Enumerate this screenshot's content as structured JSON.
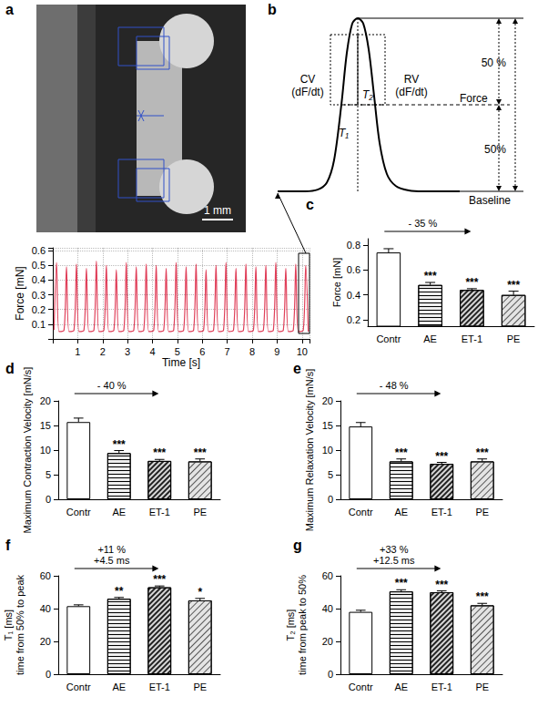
{
  "chart_data": [
    {
      "type": "image",
      "panel_label": "a",
      "scale_bar": "1 mm"
    },
    {
      "type": "line",
      "panel_label": "b",
      "x": [
        0,
        0.15,
        0.22,
        0.27,
        0.31,
        0.35,
        0.38,
        0.41,
        0.44,
        0.47,
        0.5,
        0.53,
        0.56,
        0.6,
        0.65,
        0.72,
        0.8,
        1
      ],
      "values": [
        0,
        0,
        0.01,
        0.05,
        0.18,
        0.5,
        0.8,
        0.97,
        1,
        0.97,
        0.82,
        0.55,
        0.28,
        0.1,
        0.03,
        0.005,
        0,
        0
      ],
      "xlim": [
        0,
        1
      ],
      "ylim": [
        0,
        1
      ],
      "tick_labels": false,
      "color": "#000000",
      "annotations": {
        "upper": "50 %",
        "lower": "50%",
        "level": "Force",
        "baseline": "Baseline",
        "cv": "CV\n(dF/dt)",
        "rv": "RV\n(dF/dt)",
        "t1": "T₁",
        "t2": "T₂"
      }
    },
    {
      "type": "line",
      "xlabel": "Time [s]",
      "ylabel": "Force [mN]",
      "x": [
        0.05,
        0.15,
        0.25,
        0.45,
        0.55,
        0.65,
        0.85,
        0.95,
        1.05,
        1.25,
        1.35,
        1.45,
        1.65,
        1.75,
        1.85,
        2.05,
        2.15,
        2.25,
        2.45,
        2.55,
        2.65,
        2.85,
        2.95,
        3.05,
        3.25,
        3.35,
        3.45,
        3.65,
        3.75,
        3.85,
        4.05,
        4.15,
        4.25,
        4.45,
        4.55,
        4.65,
        4.85,
        4.95,
        5.05,
        5.25,
        5.35,
        5.45,
        5.65,
        5.75,
        5.85,
        6.05,
        6.15,
        6.25,
        6.45,
        6.55,
        6.65,
        6.85,
        6.95,
        7.05,
        7.25,
        7.35,
        7.45,
        7.65,
        7.75,
        7.85,
        8.05,
        8.15,
        8.25,
        8.45,
        8.55,
        8.65,
        8.85,
        8.95,
        9.05,
        9.25,
        9.35,
        9.45,
        9.65,
        9.75,
        9.85,
        10.05,
        10.15,
        10.25
      ],
      "values": [
        0.06,
        0.52,
        0.05,
        0.06,
        0.49,
        0.05,
        0.06,
        0.51,
        0.05,
        0.06,
        0.48,
        0.05,
        0.06,
        0.53,
        0.05,
        0.06,
        0.5,
        0.05,
        0.06,
        0.47,
        0.05,
        0.06,
        0.52,
        0.05,
        0.06,
        0.49,
        0.05,
        0.06,
        0.51,
        0.05,
        0.06,
        0.5,
        0.05,
        0.06,
        0.48,
        0.05,
        0.06,
        0.52,
        0.05,
        0.06,
        0.49,
        0.05,
        0.06,
        0.51,
        0.05,
        0.06,
        0.47,
        0.05,
        0.06,
        0.5,
        0.05,
        0.06,
        0.52,
        0.05,
        0.06,
        0.48,
        0.05,
        0.06,
        0.51,
        0.05,
        0.06,
        0.49,
        0.05,
        0.06,
        0.5,
        0.05,
        0.06,
        0.52,
        0.05,
        0.06,
        0.48,
        0.05,
        0.06,
        0.51,
        0.05,
        0.06,
        0.5,
        0.05
      ],
      "xlim": [
        0,
        10.3
      ],
      "xticks": [
        1,
        2,
        3,
        4,
        5,
        6,
        7,
        8,
        9,
        10
      ],
      "ylim": [
        0,
        0.62
      ],
      "yticks": [
        0.1,
        0.2,
        0.3,
        0.4,
        0.5,
        0.6
      ],
      "grid": true,
      "color": "#e0405a"
    },
    {
      "type": "bar",
      "panel_label": "c",
      "ylabel": "Force [mN]",
      "categories": [
        "Contr",
        "AE",
        "ET-1",
        "PE"
      ],
      "values": [
        0.74,
        0.48,
        0.44,
        0.4
      ],
      "errors": [
        0.03,
        0.02,
        0.01,
        0.03
      ],
      "significance": [
        null,
        "***",
        "***",
        "***"
      ],
      "colors": [
        "#ffffff",
        "#eeeeee",
        "#d8d8d8",
        "#e4e4e4"
      ],
      "ylim": [
        0.15,
        0.85
      ],
      "yticks": [
        0.2,
        0.4,
        0.6,
        0.8
      ],
      "annotation": [
        "- 35 %"
      ]
    },
    {
      "type": "bar",
      "panel_label": "d",
      "ylabel": "Maximum Contraction Velocity [mN/s]",
      "categories": [
        "Contr",
        "AE",
        "ET-1",
        "PE"
      ],
      "values": [
        15.7,
        9.4,
        7.8,
        7.7
      ],
      "errors": [
        0.8,
        0.5,
        0.3,
        0.5
      ],
      "significance": [
        null,
        "***",
        "***",
        "***"
      ],
      "colors": [
        "#ffffff",
        "#eeeeee",
        "#d8d8d8",
        "#e4e4e4"
      ],
      "ylim": [
        0,
        20
      ],
      "yticks": [
        0,
        5,
        10,
        15,
        20
      ],
      "annotation": [
        "- 40 %"
      ]
    },
    {
      "type": "bar",
      "panel_label": "e",
      "ylabel": "Maximum Relaxation Velocity [mN/s]",
      "categories": [
        "Contr",
        "AE",
        "ET-1",
        "PE"
      ],
      "values": [
        14.8,
        7.7,
        7.2,
        7.7
      ],
      "errors": [
        0.8,
        0.5,
        0.3,
        0.5
      ],
      "significance": [
        null,
        "***",
        "***",
        "***"
      ],
      "colors": [
        "#ffffff",
        "#eeeeee",
        "#d8d8d8",
        "#e4e4e4"
      ],
      "ylim": [
        0,
        20
      ],
      "yticks": [
        0,
        5,
        10,
        15,
        20
      ],
      "annotation": [
        "- 48 %"
      ]
    },
    {
      "type": "bar",
      "panel_label": "f",
      "ylabel": [
        "T₁ [ms]",
        "time from 50% to peak"
      ],
      "categories": [
        "Contr",
        "AE",
        "ET-1",
        "PE"
      ],
      "values": [
        41.5,
        46,
        53,
        45
      ],
      "errors": [
        0.8,
        0.8,
        0.8,
        1.2
      ],
      "significance": [
        null,
        "**",
        "***",
        "*"
      ],
      "colors": [
        "#ffffff",
        "#eeeeee",
        "#d8d8d8",
        "#e4e4e4"
      ],
      "ylim": [
        0,
        60
      ],
      "yticks": [
        0,
        20,
        40,
        60
      ],
      "annotation": [
        "+11 %",
        "+4.5 ms"
      ]
    },
    {
      "type": "bar",
      "panel_label": "g",
      "ylabel": [
        "T₂ [ms]",
        "time from peak to 50%"
      ],
      "categories": [
        "Contr",
        "AE",
        "ET-1",
        "PE"
      ],
      "values": [
        38,
        50.5,
        50,
        42
      ],
      "errors": [
        1,
        1,
        0.8,
        1.2
      ],
      "significance": [
        null,
        "***",
        "***",
        "***"
      ],
      "colors": [
        "#ffffff",
        "#eeeeee",
        "#d8d8d8",
        "#e4e4e4"
      ],
      "ylim": [
        0,
        60
      ],
      "yticks": [
        0,
        20,
        40,
        60
      ],
      "annotation": [
        "+33 %",
        "+12.5 ms"
      ]
    }
  ]
}
